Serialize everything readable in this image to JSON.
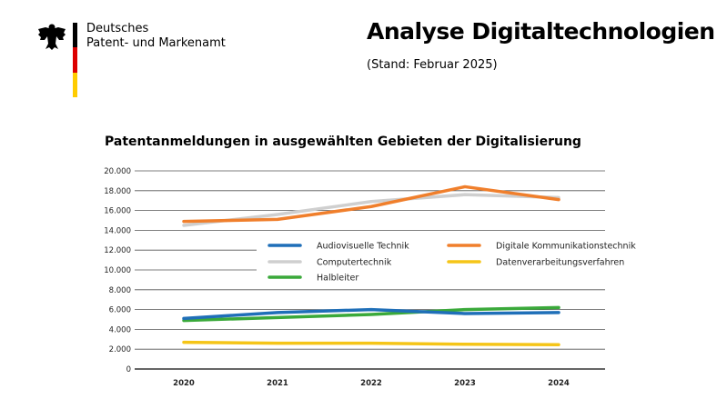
{
  "header": {
    "org_line1": "Deutsches",
    "org_line2": "Patent- und Markenamt",
    "title": "Analyse Digitaltechnologien",
    "subtitle": "(Stand: Februar 2025)"
  },
  "chart_data": {
    "type": "line",
    "title": "Patentanmeldungen in ausgewählten Gebieten der Digitalisierung",
    "xlabel": "",
    "ylabel": "",
    "categories": [
      "2020",
      "2021",
      "2022",
      "2023",
      "2024"
    ],
    "ylim": [
      0,
      20000
    ],
    "yticks": [
      0,
      2000,
      4000,
      6000,
      8000,
      10000,
      12000,
      14000,
      16000,
      18000,
      20000
    ],
    "ytick_labels": [
      "0",
      "2.000",
      "4.000",
      "6.000",
      "8.000",
      "10.000",
      "12.000",
      "14.000",
      "16.000",
      "18.000",
      "20.000"
    ],
    "grid": true,
    "legend_placement": "center-right",
    "series": [
      {
        "name": "Audiovisuelle Technik",
        "color": "#1f6fb8",
        "values": [
          5100,
          5700,
          6000,
          5600,
          5700
        ]
      },
      {
        "name": "Digitale Kommunikationstechnik",
        "color": "#f07f2c",
        "values": [
          14900,
          15100,
          16400,
          18400,
          17100
        ]
      },
      {
        "name": "Computertechnik",
        "color": "#cfcfcf",
        "values": [
          14500,
          15600,
          16900,
          17600,
          17300
        ]
      },
      {
        "name": "Datenverarbeitungsverfahren",
        "color": "#f5c518",
        "values": [
          2700,
          2600,
          2600,
          2500,
          2450
        ]
      },
      {
        "name": "Halbleiter",
        "color": "#3aa93a",
        "values": [
          4900,
          5200,
          5500,
          6000,
          6200
        ]
      }
    ]
  }
}
